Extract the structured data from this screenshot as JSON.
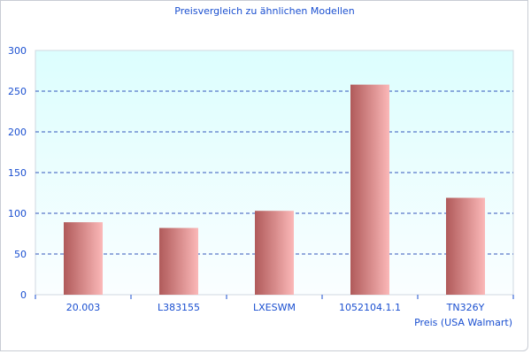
{
  "chart_data": {
    "type": "bar",
    "title": "Preisvergleich zu ähnlichen Modellen",
    "xlabel": "Preis (USA Walmart)",
    "ylabel": "",
    "categories": [
      "20.003",
      "L383155",
      "LXESWM",
      "1052104.1.1",
      "TN326Y"
    ],
    "values": [
      89,
      82,
      103,
      258,
      119
    ],
    "ylim": [
      0,
      300
    ],
    "yticks": [
      0,
      50,
      100,
      150,
      200,
      250,
      300
    ],
    "grid": true,
    "colors": {
      "bar_dark": "#b05a5a",
      "bar_light": "#fbb8b8",
      "bg_top": "#dcfefe",
      "bg_bottom": "#fafeff",
      "grid": "#3355bb",
      "text": "#1a4fd0"
    }
  }
}
